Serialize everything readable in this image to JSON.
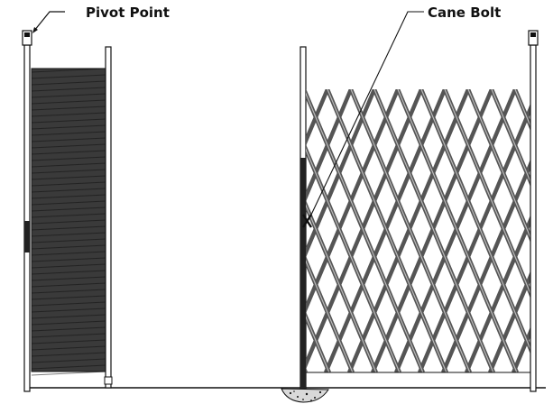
{
  "labels": {
    "pivot_point": "Pivot Point",
    "cane_bolt": "Cane Bolt"
  },
  "colors": {
    "ink": "#111111",
    "folded_lattice": "#3a3a3a",
    "concrete": "#d9d9d9"
  }
}
